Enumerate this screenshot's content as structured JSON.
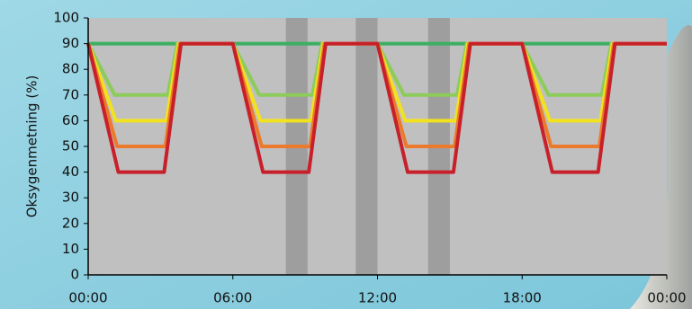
{
  "chart_data": {
    "type": "line",
    "y_label": "Oksygenmetning  (%)",
    "ylim": [
      0,
      100
    ],
    "yticks": [
      0,
      10,
      20,
      30,
      40,
      50,
      60,
      70,
      80,
      90,
      100
    ],
    "xlim": [
      0,
      24
    ],
    "xticks": [
      {
        "value": 0,
        "label": "00:00"
      },
      {
        "value": 6,
        "label": "06:00"
      },
      {
        "value": 12,
        "label": "12:00"
      },
      {
        "value": 18,
        "label": "18:00"
      },
      {
        "value": 24,
        "label": "00:00"
      }
    ],
    "shaded_ranges": [
      [
        8.2,
        9.1
      ],
      [
        11.1,
        12.0
      ],
      [
        14.1,
        15.0
      ]
    ],
    "series": [
      {
        "color": "#3daf62",
        "x": [
          0,
          24
        ],
        "values": [
          90,
          90
        ]
      },
      {
        "color": "#8ccc5a",
        "x": [
          0,
          1.1,
          3.3,
          3.7,
          6,
          7.1,
          9.3,
          9.7,
          12,
          13.1,
          15.3,
          15.7,
          18,
          19.1,
          21.3,
          21.7,
          24
        ],
        "values": [
          90,
          70,
          70,
          90,
          90,
          70,
          70,
          90,
          90,
          70,
          70,
          90,
          90,
          70,
          70,
          90,
          90
        ]
      },
      {
        "color": "#f2e21e",
        "x": [
          0,
          1.15,
          3.25,
          3.75,
          6,
          7.15,
          9.25,
          9.75,
          12,
          13.15,
          15.25,
          15.75,
          18,
          19.15,
          21.25,
          21.75,
          24
        ],
        "values": [
          90,
          60,
          60,
          90,
          90,
          60,
          60,
          90,
          90,
          60,
          60,
          90,
          90,
          60,
          60,
          90,
          90
        ]
      },
      {
        "color": "#ec7a2c",
        "x": [
          0,
          1.2,
          3.2,
          3.8,
          6,
          7.2,
          9.2,
          9.8,
          12,
          13.2,
          15.2,
          15.8,
          18,
          19.2,
          21.2,
          21.8,
          24
        ],
        "values": [
          90,
          50,
          50,
          90,
          90,
          50,
          50,
          90,
          90,
          50,
          50,
          90,
          90,
          50,
          50,
          90,
          90
        ]
      },
      {
        "color": "#c8202a",
        "x": [
          0,
          1.25,
          3.15,
          3.85,
          6,
          7.25,
          9.15,
          9.85,
          12,
          13.25,
          15.15,
          15.85,
          18,
          19.25,
          21.15,
          21.85,
          24
        ],
        "values": [
          90,
          40,
          40,
          90,
          90,
          40,
          40,
          90,
          90,
          40,
          40,
          90,
          90,
          40,
          40,
          90,
          90
        ]
      }
    ]
  }
}
